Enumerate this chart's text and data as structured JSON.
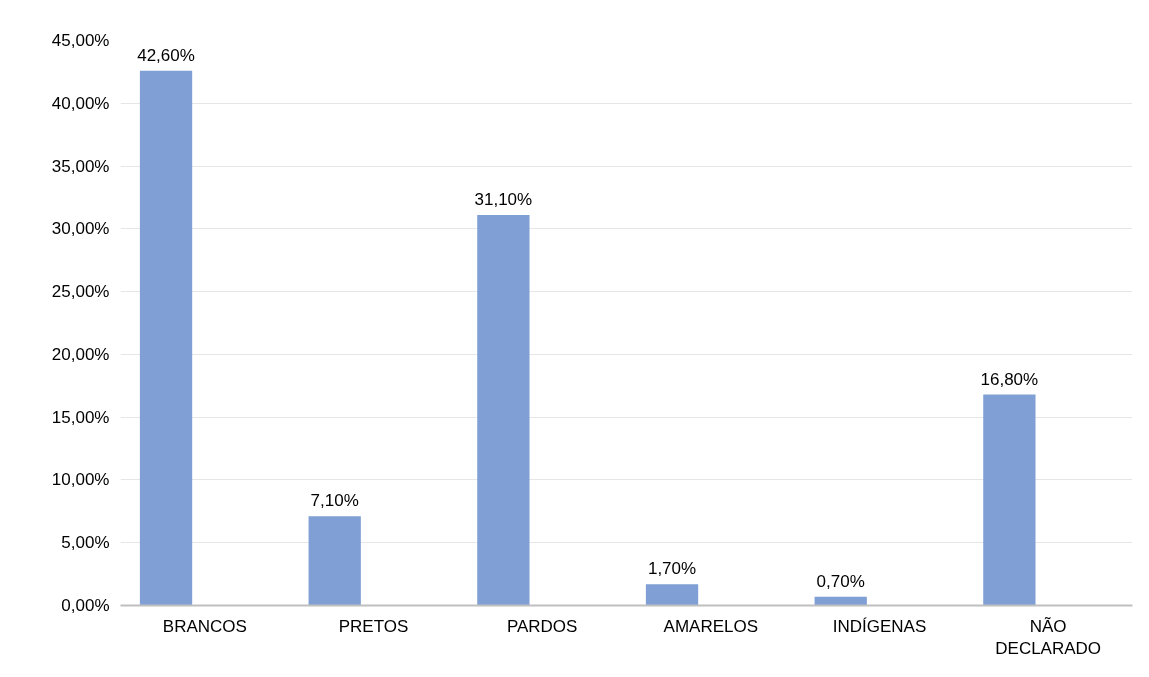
{
  "chart_data": {
    "type": "bar",
    "categories": [
      "BRANCOS",
      "PRETOS",
      "PARDOS",
      "AMARELOS",
      "INDÍGENAS",
      "NÃO DECLARADO"
    ],
    "values": [
      42.6,
      7.1,
      31.1,
      1.7,
      0.7,
      16.8
    ],
    "value_labels": [
      "42,60%",
      "7,10%",
      "31,10%",
      "1,70%",
      "0,70%",
      "16,80%"
    ],
    "color": "#7f9fd5",
    "ylim": [
      0,
      45
    ],
    "yticks": [
      {
        "value": 0,
        "label": "0,00%"
      },
      {
        "value": 5,
        "label": "5,00%"
      },
      {
        "value": 10,
        "label": "10,00%"
      },
      {
        "value": 15,
        "label": "15,00%"
      },
      {
        "value": 20,
        "label": "20,00%"
      },
      {
        "value": 25,
        "label": "25,00%"
      },
      {
        "value": 30,
        "label": "30,00%"
      },
      {
        "value": 35,
        "label": "35,00%"
      },
      {
        "value": 40,
        "label": "40,00%"
      },
      {
        "value": 45,
        "label": "45,00%"
      }
    ],
    "grid": "y"
  }
}
